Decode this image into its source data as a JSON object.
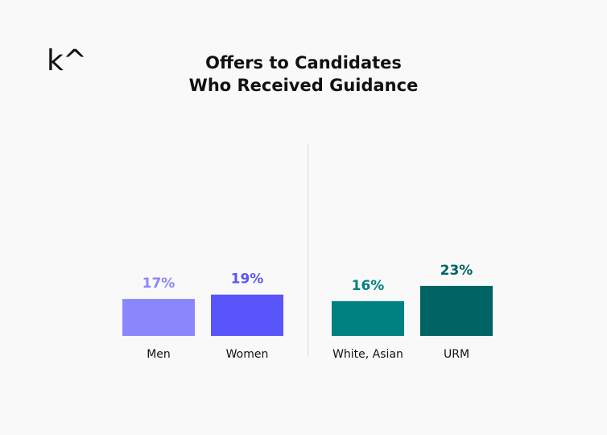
{
  "logo": "k^",
  "chart_data": {
    "type": "bar",
    "title": [
      "Offers to Candidates",
      "Who Received Guidance"
    ],
    "categories": [
      "Men",
      "Women",
      "White, Asian",
      "URM"
    ],
    "values": [
      17,
      19,
      16,
      23
    ],
    "value_labels": [
      "17%",
      "19%",
      "16%",
      "23%"
    ],
    "colors": [
      "#8b86fb",
      "#5a55fb",
      "#008080",
      "#006464"
    ],
    "groups": [
      [
        "Men",
        "Women"
      ],
      [
        "White, Asian",
        "URM"
      ]
    ],
    "xlabel": "",
    "ylabel": "",
    "ylim": [
      0,
      25
    ],
    "grid": false,
    "legend": "none"
  }
}
